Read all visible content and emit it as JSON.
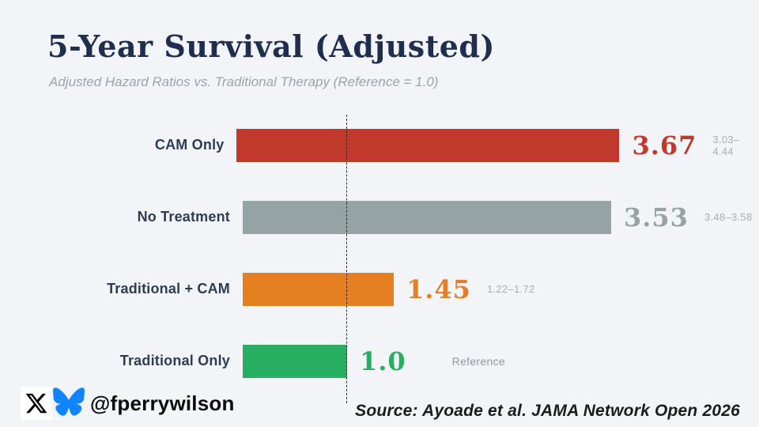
{
  "header": {
    "title": "5-Year Survival (Adjusted)",
    "subtitle": "Adjusted Hazard Ratios vs. Traditional Therapy (Reference = 1.0)"
  },
  "chart_data": {
    "type": "bar",
    "orientation": "horizontal",
    "title": "5-Year Survival (Adjusted)",
    "subtitle": "Adjusted Hazard Ratios vs. Traditional Therapy (Reference = 1.0)",
    "categories": [
      "CAM Only",
      "No Treatment",
      "Traditional + CAM",
      "Traditional Only"
    ],
    "values": [
      3.67,
      3.53,
      1.45,
      1.0
    ],
    "bars": [
      {
        "label": "CAM Only",
        "value": 3.67,
        "value_label": "3.67",
        "ci": "3.03–4.44",
        "color": "#c0392b"
      },
      {
        "label": "No Treatment",
        "value": 3.53,
        "value_label": "3.53",
        "ci": "3.48–3.58",
        "color": "#95a3a4"
      },
      {
        "label": "Traditional + CAM",
        "value": 1.45,
        "value_label": "1.45",
        "ci": "1.22–1.72",
        "color": "#e67e22"
      },
      {
        "label": "Traditional Only",
        "value": 1.0,
        "value_label": "1.0",
        "ci": "Reference",
        "color": "#27ae60"
      }
    ],
    "reference_line": {
      "value": 1.0,
      "style": "dashed",
      "color": "#2f2f2f"
    },
    "xlim": [
      0,
      4.7
    ],
    "grid": false,
    "legend": false,
    "value_label_font": "serif-bold",
    "ci_color": "#a7aeb6"
  },
  "footer": {
    "handle": "@fperrywilson",
    "source": "Source: Ayoade et al. JAMA Network Open 2026",
    "icons": [
      {
        "name": "x-logo-icon",
        "color": "#000000",
        "background": "#ffffff"
      },
      {
        "name": "bluesky-butterfly-icon",
        "color": "#1185fe"
      }
    ]
  },
  "colors": {
    "background": "#f2f4f7",
    "title": "#1f2d4f",
    "subtitle": "#9ba4af",
    "category_label": "#2e3d54",
    "red": "#c0392b",
    "gray": "#95a3a4",
    "orange": "#e67e22",
    "green": "#27ae60"
  }
}
